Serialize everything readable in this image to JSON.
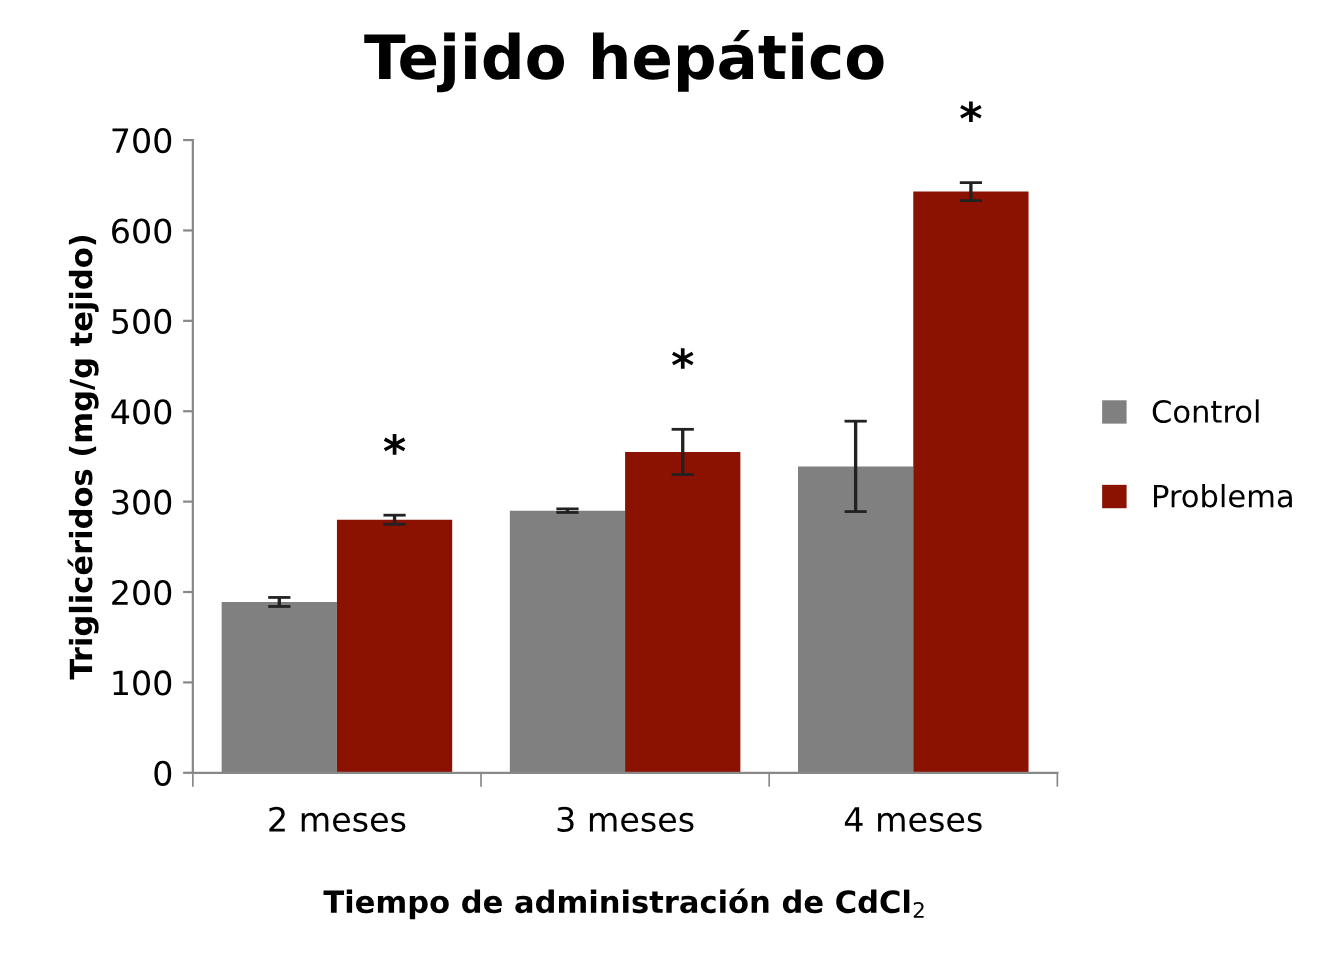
{
  "chart_data": {
    "type": "bar",
    "title": "Tejido hepático",
    "xlabel": "Tiempo de administración de CdCl$_{2}$",
    "ylabel": "Triglicéridos (mg/g tejido)",
    "categories": [
      "2 meses",
      "3 meses",
      "4 meses"
    ],
    "series": [
      {
        "name": "Control",
        "color": "#808080",
        "values": [
          189,
          290,
          339
        ],
        "errors": [
          5,
          2,
          50
        ]
      },
      {
        "name": "Problema",
        "color": "#8b1200",
        "values": [
          280,
          355,
          643
        ],
        "errors": [
          5,
          25,
          10
        ]
      }
    ],
    "annotations": [
      "*",
      "*",
      "*"
    ],
    "ylim": [
      0,
      700
    ],
    "yticks": [
      0,
      100,
      200,
      300,
      400,
      500,
      600,
      700
    ],
    "grid": false,
    "legend": "right"
  }
}
